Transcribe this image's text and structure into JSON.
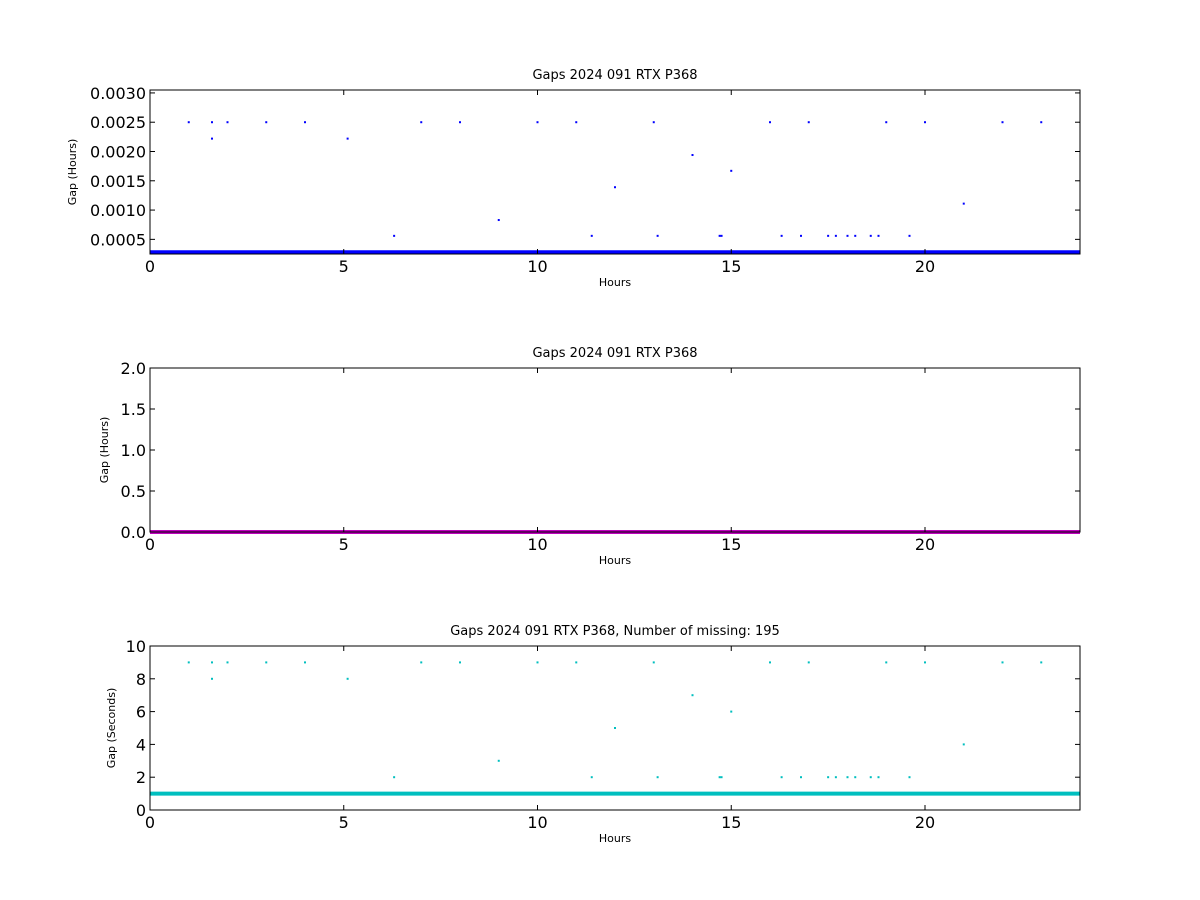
{
  "colors": {
    "panel1": "#0000ff",
    "panel2": "#bf00bf",
    "panel3": "#00bfbf"
  },
  "chart_data": [
    {
      "type": "scatter",
      "title": "Gaps 2024 091 RTX  P368",
      "xlabel": "Hours",
      "ylabel": "Gap (Hours)",
      "xlim": [
        0,
        24
      ],
      "ylim": [
        0.00025,
        0.00305
      ],
      "xticks": [
        "0",
        "5",
        "10",
        "15",
        "20"
      ],
      "yticks": [
        "0.0005",
        "0.0010",
        "0.0015",
        "0.0020",
        "0.0025",
        "0.0030"
      ],
      "grid": false,
      "baseline": {
        "value": 0.00028,
        "x_range": [
          0,
          24
        ]
      },
      "series": [
        {
          "color": "#0000ff",
          "x": [
            1.0,
            1.6,
            1.6,
            2.0,
            3.0,
            4.0,
            5.1,
            6.3,
            7.0,
            8.0,
            9.0,
            10.0,
            11.0,
            11.4,
            12.0,
            13.0,
            13.1,
            14.0,
            14.7,
            14.75,
            15.0,
            16.0,
            16.3,
            16.8,
            17.0,
            17.5,
            17.7,
            18.0,
            18.2,
            18.6,
            18.8,
            19.0,
            19.6,
            20.0,
            21.0,
            22.0,
            23.0
          ],
          "y": [
            0.0025,
            0.0025,
            0.00222,
            0.0025,
            0.0025,
            0.0025,
            0.00222,
            0.00056,
            0.0025,
            0.0025,
            0.00083,
            0.0025,
            0.0025,
            0.00056,
            0.00139,
            0.0025,
            0.00056,
            0.00194,
            0.00056,
            0.00056,
            0.00167,
            0.0025,
            0.00056,
            0.00056,
            0.0025,
            0.00056,
            0.00056,
            0.00056,
            0.00056,
            0.00056,
            0.00056,
            0.0025,
            0.00056,
            0.0025,
            0.00111,
            0.0025,
            0.0025
          ]
        }
      ]
    },
    {
      "type": "line",
      "title": "Gaps 2024 091 RTX  P368",
      "xlabel": "Hours",
      "ylabel": "Gap (Hours)",
      "xlim": [
        0,
        24
      ],
      "ylim": [
        0,
        2
      ],
      "xticks": [
        "0",
        "5",
        "10",
        "15",
        "20"
      ],
      "yticks": [
        "0.0",
        "0.5",
        "1.0",
        "1.5",
        "2.0"
      ],
      "grid": false,
      "baseline": {
        "value": 0.0,
        "x_range": [
          0,
          24
        ]
      },
      "series": [
        {
          "color": "#bf00bf",
          "x": [
            0,
            24
          ],
          "y": [
            0,
            0
          ]
        }
      ]
    },
    {
      "type": "scatter",
      "title": "Gaps 2024 091 RTX  P368, Number of missing: 195",
      "xlabel": "Hours",
      "ylabel": "Gap (Seconds)",
      "xlim": [
        0,
        24
      ],
      "ylim": [
        0,
        10
      ],
      "xticks": [
        "0",
        "5",
        "10",
        "15",
        "20"
      ],
      "yticks": [
        "0",
        "2",
        "4",
        "6",
        "8",
        "10"
      ],
      "grid": false,
      "baseline": {
        "value": 1,
        "x_range": [
          0,
          24
        ]
      },
      "series": [
        {
          "color": "#00bfbf",
          "x": [
            1.0,
            1.6,
            1.6,
            2.0,
            3.0,
            4.0,
            5.1,
            6.3,
            7.0,
            8.0,
            9.0,
            10.0,
            11.0,
            11.4,
            12.0,
            13.0,
            13.1,
            14.0,
            14.7,
            14.75,
            15.0,
            16.0,
            16.3,
            16.8,
            17.0,
            17.5,
            17.7,
            18.0,
            18.2,
            18.6,
            18.8,
            19.0,
            19.6,
            20.0,
            21.0,
            22.0,
            23.0
          ],
          "y": [
            9,
            9,
            8,
            9,
            9,
            9,
            8,
            2,
            9,
            9,
            3,
            9,
            9,
            2,
            5,
            9,
            2,
            7,
            2,
            2,
            6,
            9,
            2,
            2,
            9,
            2,
            2,
            2,
            2,
            2,
            2,
            9,
            2,
            9,
            4,
            9,
            9
          ]
        }
      ]
    }
  ]
}
